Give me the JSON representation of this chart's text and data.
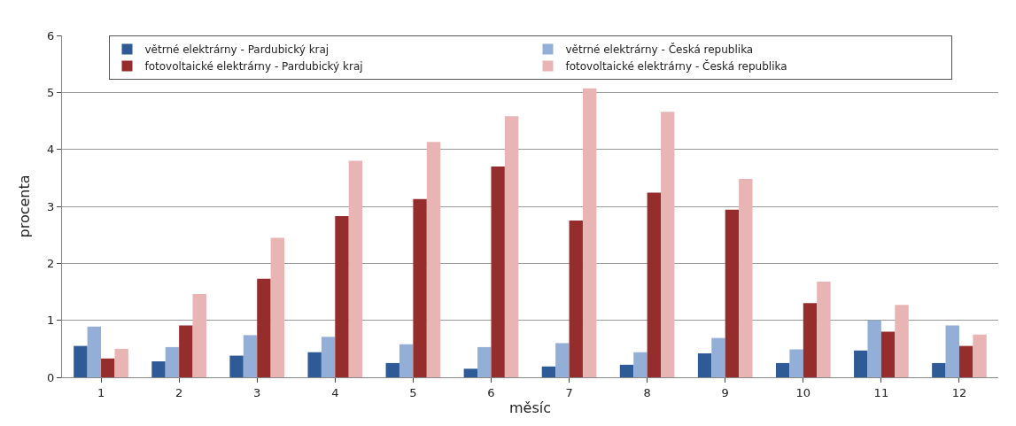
{
  "chart_data": {
    "type": "bar",
    "xlabel": "měsíc",
    "ylabel": "procenta",
    "categories": [
      "1",
      "2",
      "3",
      "4",
      "5",
      "6",
      "7",
      "8",
      "9",
      "10",
      "11",
      "12"
    ],
    "series": [
      {
        "name": "větrné elektrárny - Pardubický kraj",
        "color": "#2e5b96",
        "values": [
          0.55,
          0.28,
          0.38,
          0.44,
          0.25,
          0.15,
          0.19,
          0.22,
          0.42,
          0.25,
          0.47,
          0.25
        ]
      },
      {
        "name": "větrné elektrárny - Česká republika",
        "color": "#93afd8",
        "values": [
          0.89,
          0.53,
          0.74,
          0.71,
          0.58,
          0.53,
          0.6,
          0.44,
          0.69,
          0.49,
          1.0,
          0.91
        ]
      },
      {
        "name": "fotovoltaické elektrárny - Pardubický kraj",
        "color": "#962d2d",
        "values": [
          0.33,
          0.91,
          1.73,
          2.83,
          3.13,
          3.7,
          2.75,
          3.24,
          2.94,
          1.3,
          0.8,
          0.55
        ]
      },
      {
        "name": "fotovoltaické elektrárny - Česká republika",
        "color": "#e8b4b4",
        "values": [
          0.5,
          1.46,
          2.45,
          3.8,
          4.13,
          4.58,
          5.07,
          4.66,
          3.48,
          1.68,
          1.27,
          0.75
        ]
      }
    ],
    "ylim": [
      0,
      6
    ],
    "yticks": [
      0,
      1,
      2,
      3,
      4,
      5,
      6
    ],
    "grid": "y",
    "legend": "top"
  }
}
